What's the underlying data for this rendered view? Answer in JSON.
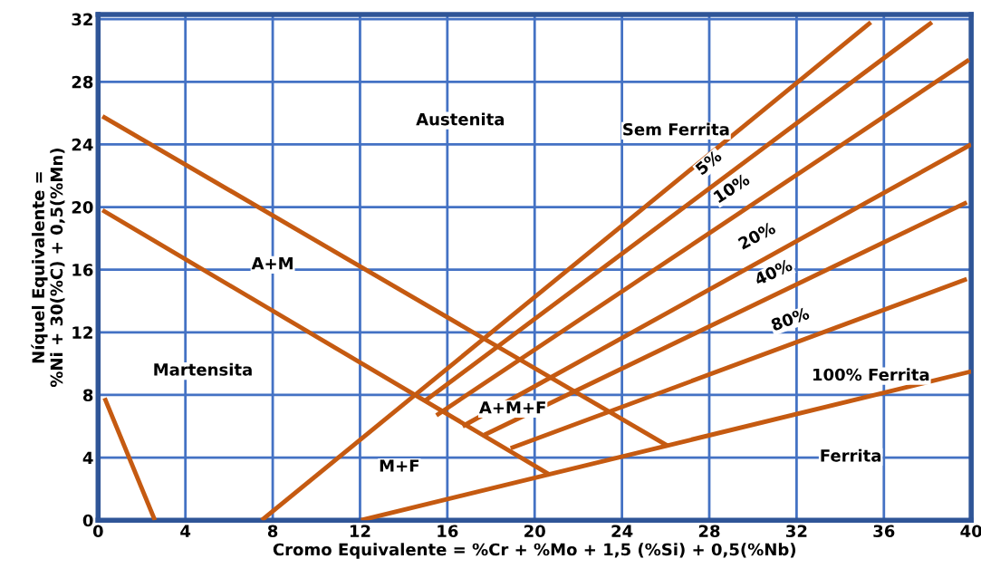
{
  "chart_data": {
    "type": "line",
    "xlabel": "Cromo Equivalente = %Cr + %Mo + 1,5 (%Si) + 0,5(%Nb)",
    "ylabel": "Níquel Equivalente =\n%Ni + 30(%C) + 0,5(%Mn)",
    "xlim": [
      0,
      40
    ],
    "xticks": [
      0,
      4,
      8,
      12,
      16,
      20,
      24,
      28,
      32,
      36,
      40
    ],
    "ylim": [
      0,
      32.3
    ],
    "yticks": [
      0,
      4,
      8,
      12,
      16,
      20,
      24,
      28,
      32
    ],
    "grid": true,
    "series": [
      {
        "color": "#c55a11",
        "x": [
          0.3,
          2.6
        ],
        "values": [
          7.8,
          0
        ]
      },
      {
        "color": "#c55a11",
        "x": [
          0.2,
          26.1
        ],
        "values": [
          25.8,
          4.75
        ]
      },
      {
        "color": "#c55a11",
        "x": [
          0.2,
          20.7
        ],
        "values": [
          19.8,
          2.9
        ]
      },
      {
        "color": "#c55a11",
        "x": [
          7.5,
          35.4
        ],
        "values": [
          0,
          31.8
        ]
      },
      {
        "color": "#c55a11",
        "x": [
          15.0,
          38.2
        ],
        "values": [
          7.65,
          31.8
        ]
      },
      {
        "color": "#c55a11",
        "x": [
          15.5,
          39.9
        ],
        "values": [
          6.7,
          29.4
        ]
      },
      {
        "color": "#c55a11",
        "x": [
          16.7,
          40
        ],
        "values": [
          6.0,
          24.0
        ]
      },
      {
        "color": "#c55a11",
        "x": [
          17.7,
          39.8
        ],
        "values": [
          5.45,
          20.3
        ]
      },
      {
        "color": "#c55a11",
        "x": [
          18.9,
          39.8
        ],
        "values": [
          4.6,
          15.4
        ]
      },
      {
        "color": "#c55a11",
        "x": [
          12.05,
          40
        ],
        "values": [
          0,
          9.5
        ]
      }
    ],
    "annotations": [
      "Austenita",
      "Sem Ferrita",
      "5%",
      "10%",
      "20%",
      "40%",
      "80%",
      "100% Ferrita",
      "Ferrita",
      "A+M",
      "Martensita",
      "A+M+F",
      "M+F"
    ]
  }
}
